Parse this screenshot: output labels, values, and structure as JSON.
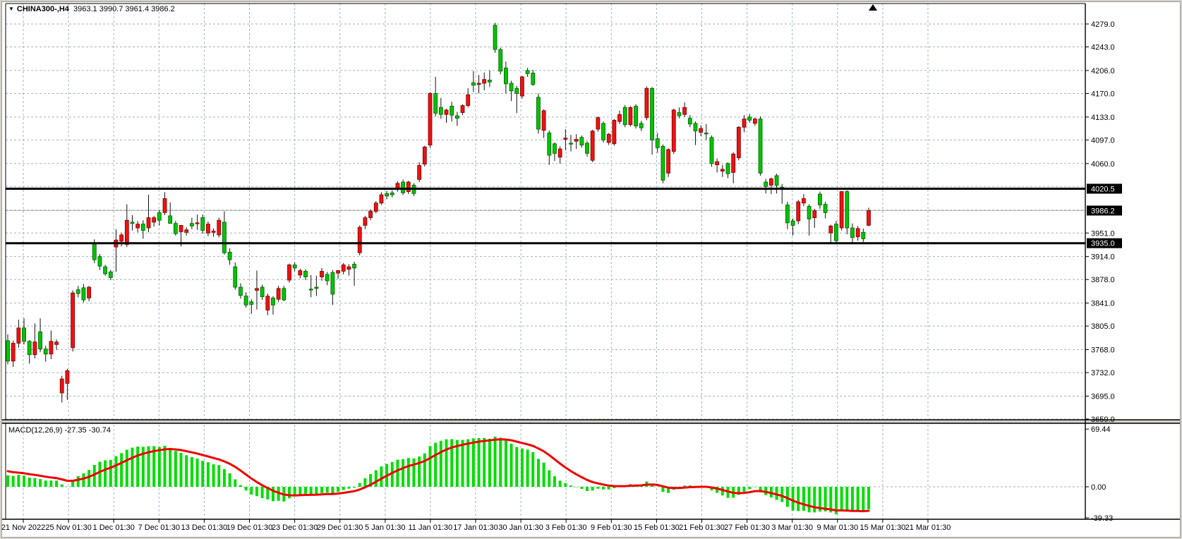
{
  "window": {
    "title": {
      "symbol": "CHINA300-,H4",
      "ohlc": "3963.1 3990.7 3961.4 3986.2"
    }
  },
  "icons": {
    "symbol_marker": "▼",
    "shift_marker": "shift-triangle"
  },
  "chart_data": {
    "type": "candlestick",
    "symbol": "CHINA300-",
    "timeframe": "H4",
    "title": "CHINA300-,H4  3963.1 3990.7 3961.4 3986.2",
    "current_bar": {
      "open": 3963.1,
      "high": 3990.7,
      "low": 3961.4,
      "close": 3986.2
    },
    "colors": {
      "bull_body": "#ee1111",
      "bull_edge": "#7e0000",
      "bear_body": "#00c400",
      "bear_edge": "#005e00",
      "wick": "#111111",
      "grid": "#a3b2c0",
      "bid_line": "#b4b4b4",
      "object_line": "#000000",
      "macd_hist": "#00dd00",
      "macd_signal": "#ee0000",
      "tag_bg": "#000000",
      "tag_text": "#ffffff"
    },
    "price_axis": {
      "grid_prices": [
        4279,
        4243,
        4206,
        4170,
        4133,
        4097,
        4060,
        4024,
        3987,
        3951,
        3914,
        3878,
        3841,
        3805,
        3768,
        3732,
        3695,
        3659
      ],
      "labels": [
        {
          "text": "4279.0",
          "price": 4279
        },
        {
          "text": "4243.0",
          "price": 4243
        },
        {
          "text": "4206.0",
          "price": 4206
        },
        {
          "text": "4170.0",
          "price": 4170
        },
        {
          "text": "4133.0",
          "price": 4133
        },
        {
          "text": "4097.0",
          "price": 4097
        },
        {
          "text": "4060.0",
          "price": 4060
        },
        {
          "text": "3951.0",
          "price": 3951
        },
        {
          "text": "3914.0",
          "price": 3914
        },
        {
          "text": "3878.0",
          "price": 3878
        },
        {
          "text": "3841.0",
          "price": 3841
        },
        {
          "text": "3805.0",
          "price": 3805
        },
        {
          "text": "3768.0",
          "price": 3768
        },
        {
          "text": "3732.0",
          "price": 3732
        },
        {
          "text": "3695.0",
          "price": 3695
        },
        {
          "text": "3659.0",
          "price": 3659
        }
      ],
      "tags": [
        {
          "text": "4020.5",
          "price": 4020.5,
          "name": "resistance-price-tag"
        },
        {
          "text": "3986.2",
          "price": 3986.2,
          "name": "bid-price-tag"
        },
        {
          "text": "3935.0",
          "price": 3935.0,
          "name": "support-price-tag"
        }
      ],
      "ylim": [
        3659,
        4279
      ]
    },
    "hlines": [
      {
        "price": 4020.5,
        "role": "resistance"
      },
      {
        "price": 3935.0,
        "role": "support"
      }
    ],
    "bid_price": 3986.2,
    "time_axis": {
      "labels": [
        "21 Nov 2022",
        "25 Nov 01:30",
        "1 Dec 01:30",
        "7 Dec 01:30",
        "13 Dec 01:30",
        "19 Dec 01:30",
        "23 Dec 01:30",
        "29 Dec 01:30",
        "5 Jan 01:30",
        "11 Jan 01:30",
        "17 Jan 01:30",
        "30 Jan 01:30",
        "3 Feb 01:30",
        "9 Feb 01:30",
        "15 Feb 01:30",
        "21 Feb 01:30",
        "27 Feb 01:30",
        "3 Mar 01:30",
        "9 Mar 01:30",
        "15 Mar 01:30",
        "21 Mar 01:30"
      ]
    },
    "candles_format": [
      "open",
      "high",
      "low",
      "close"
    ],
    "candles": [
      [
        3782,
        3792,
        3745,
        3750
      ],
      [
        3750,
        3782,
        3741,
        3778
      ],
      [
        3778,
        3815,
        3771,
        3802
      ],
      [
        3802,
        3817,
        3776,
        3781
      ],
      [
        3781,
        3783,
        3746,
        3760
      ],
      [
        3760,
        3809,
        3754,
        3780
      ],
      [
        3796,
        3817,
        3764,
        3769
      ],
      [
        3769,
        3774,
        3749,
        3761
      ],
      [
        3761,
        3798,
        3753,
        3781
      ],
      [
        3776,
        3784,
        3768,
        3780
      ],
      [
        3700,
        3727,
        3685,
        3722
      ],
      [
        3715,
        3738,
        3689,
        3735
      ],
      [
        3771,
        3861,
        3765,
        3857
      ],
      [
        3862,
        3868,
        3850,
        3856
      ],
      [
        3865,
        3871,
        3842,
        3846
      ],
      [
        3849,
        3868,
        3844,
        3866
      ],
      [
        3935,
        3941,
        3904,
        3909
      ],
      [
        3914,
        3918,
        3893,
        3899
      ],
      [
        3898,
        3901,
        3884,
        3887
      ],
      [
        3890,
        3893,
        3877,
        3881
      ],
      [
        3929,
        3957,
        3890,
        3940
      ],
      [
        3938,
        3951,
        3930,
        3948
      ],
      [
        3933,
        3996,
        3929,
        3971
      ],
      [
        3968,
        3979,
        3955,
        3966
      ],
      [
        3959,
        3970,
        3952,
        3965
      ],
      [
        3965,
        3971,
        3942,
        3955
      ],
      [
        3959,
        4011,
        3952,
        3975
      ],
      [
        3968,
        3978,
        3961,
        3975
      ],
      [
        3983,
        3987,
        3963,
        3971
      ],
      [
        3983,
        4015,
        3979,
        4005
      ],
      [
        3978,
        3999,
        3969,
        3966
      ],
      [
        3966,
        3970,
        3947,
        3950
      ],
      [
        3953,
        3961,
        3930,
        3963
      ],
      [
        3952,
        3960,
        3947,
        3956
      ],
      [
        3966,
        3975,
        3957,
        3962
      ],
      [
        3967,
        3980,
        3956,
        3967
      ],
      [
        3975,
        3980,
        3950,
        3955
      ],
      [
        3951,
        3969,
        3946,
        3965
      ],
      [
        3952,
        3958,
        3945,
        3954
      ],
      [
        3948,
        3975,
        3944,
        3971
      ],
      [
        3968,
        3985,
        3917,
        3920
      ],
      [
        3921,
        3927,
        3901,
        3909
      ],
      [
        3898,
        3905,
        3862,
        3866
      ],
      [
        3866,
        3872,
        3848,
        3853
      ],
      [
        3852,
        3858,
        3834,
        3838
      ],
      [
        3843,
        3847,
        3824,
        3839
      ],
      [
        3861,
        3892,
        3831,
        3864
      ],
      [
        3866,
        3870,
        3846,
        3851
      ],
      [
        3830,
        3856,
        3822,
        3852
      ],
      [
        3849,
        3852,
        3823,
        3838
      ],
      [
        3847,
        3868,
        3843,
        3864
      ],
      [
        3864,
        3868,
        3844,
        3846
      ],
      [
        3877,
        3903,
        3873,
        3901
      ],
      [
        3901,
        3905,
        3891,
        3896
      ],
      [
        3885,
        3895,
        3880,
        3892
      ],
      [
        3891,
        3894,
        3877,
        3882
      ],
      [
        3863,
        3885,
        3850,
        3862
      ],
      [
        3866,
        3884,
        3852,
        3864
      ],
      [
        3882,
        3896,
        3876,
        3891
      ],
      [
        3886,
        3890,
        3869,
        3876
      ],
      [
        3889,
        3893,
        3838,
        3855
      ],
      [
        3888,
        3893,
        3879,
        3892
      ],
      [
        3891,
        3904,
        3886,
        3901
      ],
      [
        3894,
        3902,
        3884,
        3898
      ],
      [
        3902,
        3906,
        3868,
        3896
      ],
      [
        3920,
        3963,
        3916,
        3960
      ],
      [
        3963,
        3978,
        3957,
        3975
      ],
      [
        3975,
        3988,
        3971,
        3985
      ],
      [
        3985,
        4001,
        3982,
        3998
      ],
      [
        3998,
        4015,
        3995,
        4011
      ],
      [
        4013,
        4017,
        4004,
        4009
      ],
      [
        4014,
        4018,
        4007,
        4011
      ],
      [
        4021,
        4032,
        4016,
        4029
      ],
      [
        4031,
        4035,
        4011,
        4014
      ],
      [
        4016,
        4033,
        4012,
        4031
      ],
      [
        4026,
        4029,
        4009,
        4013
      ],
      [
        4035,
        4062,
        4031,
        4057
      ],
      [
        4059,
        4088,
        4055,
        4086
      ],
      [
        4089,
        4172,
        4085,
        4170
      ],
      [
        4170,
        4196,
        4134,
        4139
      ],
      [
        4148,
        4163,
        4130,
        4137
      ],
      [
        4137,
        4146,
        4124,
        4144
      ],
      [
        4150,
        4157,
        4126,
        4136
      ],
      [
        4135,
        4141,
        4119,
        4131
      ],
      [
        4140,
        4153,
        4136,
        4151
      ],
      [
        4151,
        4178,
        4148,
        4168
      ],
      [
        4187,
        4205,
        4172,
        4183
      ],
      [
        4184,
        4199,
        4170,
        4186
      ],
      [
        4186,
        4203,
        4175,
        4192
      ],
      [
        4191,
        4206,
        4180,
        4188
      ],
      [
        4277,
        4281,
        4234,
        4239
      ],
      [
        4239,
        4242,
        4200,
        4205
      ],
      [
        4210,
        4220,
        4170,
        4185
      ],
      [
        4186,
        4190,
        4158,
        4174
      ],
      [
        4178,
        4182,
        4139,
        4170
      ],
      [
        4166,
        4198,
        4162,
        4196
      ],
      [
        4206,
        4210,
        4196,
        4201
      ],
      [
        4202,
        4207,
        4182,
        4184
      ],
      [
        4164,
        4170,
        4107,
        4114
      ],
      [
        4112,
        4145,
        4100,
        4143
      ],
      [
        4108,
        4112,
        4058,
        4073
      ],
      [
        4091,
        4093,
        4064,
        4076
      ],
      [
        4070,
        4087,
        4060,
        4083
      ],
      [
        4098,
        4114,
        4081,
        4100
      ],
      [
        4092,
        4105,
        4079,
        4091
      ],
      [
        4095,
        4106,
        4083,
        4098
      ],
      [
        4101,
        4104,
        4085,
        4089
      ],
      [
        4092,
        4095,
        4071,
        4076
      ],
      [
        4065,
        4113,
        4062,
        4111
      ],
      [
        4114,
        4134,
        4110,
        4132
      ],
      [
        4123,
        4126,
        4093,
        4097
      ],
      [
        4093,
        4108,
        4089,
        4106
      ],
      [
        4091,
        4130,
        4088,
        4128
      ],
      [
        4126,
        4143,
        4122,
        4137
      ],
      [
        4148,
        4152,
        4117,
        4121
      ],
      [
        4121,
        4150,
        4118,
        4148
      ],
      [
        4150,
        4153,
        4115,
        4119
      ],
      [
        4123,
        4127,
        4111,
        4116
      ],
      [
        4132,
        4181,
        4128,
        4178
      ],
      [
        4178,
        4180,
        4074,
        4097
      ],
      [
        4099,
        4108,
        4077,
        4085
      ],
      [
        4087,
        4090,
        4029,
        4034
      ],
      [
        4045,
        4084,
        4039,
        4082
      ],
      [
        4079,
        4146,
        4075,
        4144
      ],
      [
        4140,
        4148,
        4131,
        4135
      ],
      [
        4137,
        4156,
        4133,
        4148
      ],
      [
        4131,
        4136,
        4117,
        4122
      ],
      [
        4123,
        4126,
        4089,
        4111
      ],
      [
        4109,
        4120,
        4103,
        4115
      ],
      [
        4108,
        4122,
        4097,
        4107
      ],
      [
        4101,
        4104,
        4055,
        4060
      ],
      [
        4058,
        4068,
        4046,
        4063
      ],
      [
        4048,
        4058,
        4039,
        4051
      ],
      [
        4060,
        4062,
        4037,
        4044
      ],
      [
        4046,
        4078,
        4029,
        4075
      ],
      [
        4069,
        4119,
        4065,
        4117
      ],
      [
        4117,
        4136,
        4109,
        4130
      ],
      [
        4133,
        4138,
        4124,
        4128
      ],
      [
        4123,
        4132,
        4119,
        4130
      ],
      [
        4130,
        4134,
        4041,
        4045
      ],
      [
        4031,
        4036,
        4013,
        4024
      ],
      [
        4026,
        4038,
        4012,
        4036
      ],
      [
        4041,
        4044,
        4013,
        4026
      ],
      [
        4023,
        4028,
        3997,
        4021
      ],
      [
        3995,
        4000,
        3957,
        3967
      ],
      [
        3970,
        3974,
        3947,
        3963
      ],
      [
        3970,
        4003,
        3965,
        4000
      ],
      [
        3998,
        4012,
        3993,
        4005
      ],
      [
        3993,
        3996,
        3947,
        3973
      ],
      [
        3975,
        3989,
        3959,
        3986
      ],
      [
        4012,
        4016,
        3989,
        3995
      ],
      [
        3996,
        4000,
        3974,
        3983
      ],
      [
        3951,
        3964,
        3935,
        3962
      ],
      [
        3965,
        3970,
        3934,
        3939
      ],
      [
        3959,
        4017,
        3955,
        4016
      ],
      [
        4016,
        4018,
        3949,
        3959
      ],
      [
        3959,
        3966,
        3936,
        3944
      ],
      [
        3945,
        3962,
        3939,
        3958
      ],
      [
        3952,
        3958,
        3937,
        3942
      ],
      [
        3963.1,
        3990.7,
        3961.4,
        3986.2
      ]
    ],
    "indicator": {
      "name": "MACD",
      "label": "MACD(12,26,9)",
      "params": [
        12,
        26,
        9
      ],
      "value_main": "-27.35",
      "value_signal": "-30.74",
      "axis_labels": [
        {
          "text": "69.44",
          "value": 69.44
        },
        {
          "text": "0.00",
          "value": 0
        },
        {
          "text": "-39.33",
          "value": -39.33
        }
      ],
      "ylim": [
        -39.33,
        69.44
      ]
    }
  }
}
